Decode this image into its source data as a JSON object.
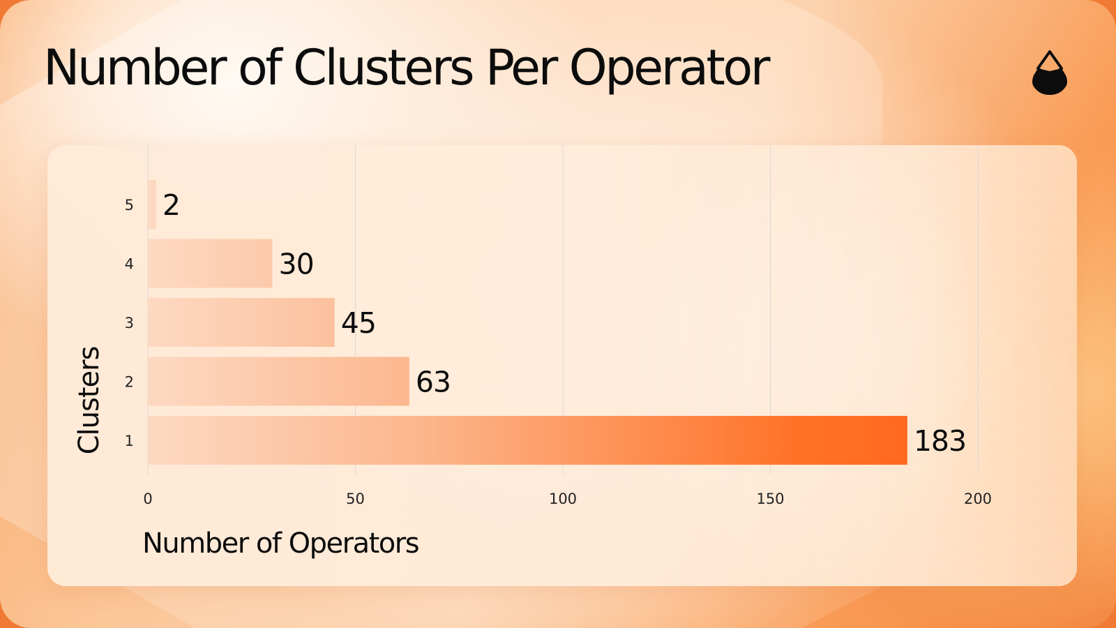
{
  "header": {
    "title": "Number of Clusters Per Operator",
    "logo_icon": "drop-logo-icon"
  },
  "colors": {
    "bar_light": "#fcd6bb",
    "bar_dark": "#ff6a1f",
    "gridline": "#dcd8d4",
    "text": "#0c0c0c"
  },
  "chart_data": {
    "type": "bar",
    "orientation": "horizontal",
    "title": "Number of Clusters Per Operator",
    "xlabel": "Number of Operators",
    "ylabel": "Clusters",
    "categories": [
      "1",
      "2",
      "3",
      "4",
      "5"
    ],
    "values": [
      183,
      63,
      45,
      30,
      2
    ],
    "value_labels": [
      "183",
      "63",
      "45",
      "30",
      "2"
    ],
    "xlim": [
      0,
      200
    ],
    "xticks": [
      0,
      50,
      100,
      150,
      200
    ],
    "xtick_labels": [
      "0",
      "50",
      "100",
      "150",
      "200"
    ],
    "grid": true,
    "legend": "none"
  }
}
